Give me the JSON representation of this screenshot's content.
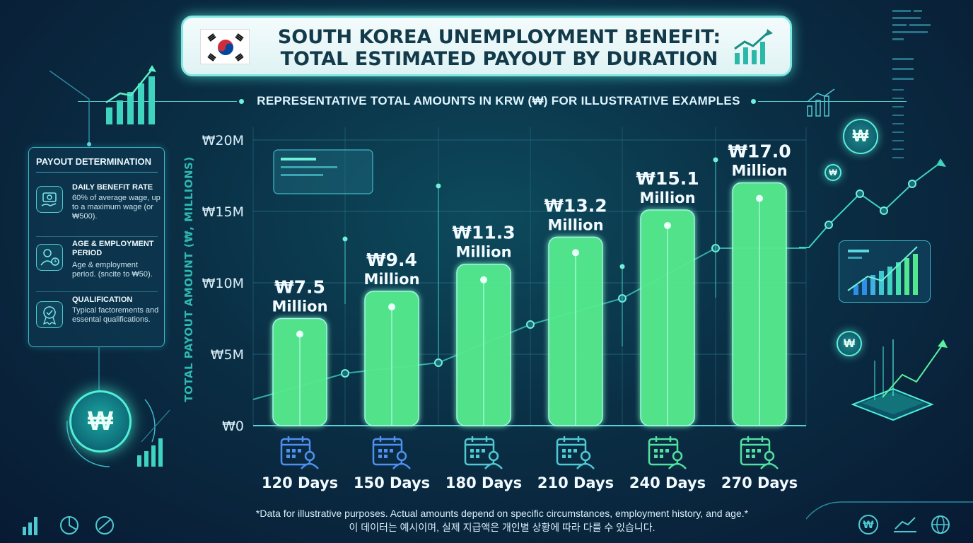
{
  "title_line1": "SOUTH KOREA UNEMPLOYMENT BENEFIT:",
  "title_line2": "TOTAL ESTIMATED PAYOUT BY DURATION",
  "subtitle": "REPRESENTATIVE TOTAL AMOUNTS IN KRW (₩) FOR ILLUSTRATIVE EXAMPLES",
  "panel": {
    "title": "PAYOUT DETERMINATION",
    "items": [
      {
        "title": "DAILY BENEFIT RATE",
        "desc": "60% of average wage, up to a maximum wage (or ₩500).",
        "icon": "money-hand-icon"
      },
      {
        "title": "AGE & EMPLOYMENT PERIOD",
        "desc": "Age & employment period. (sncite to ₩50).",
        "icon": "person-clock-icon"
      },
      {
        "title": "QUALIFICATION",
        "desc": "Typical factorements and essental qualifications.",
        "icon": "badge-icon"
      }
    ]
  },
  "coin_symbol": "₩",
  "footnote_en": "*Data for illustrative purposes. Actual amounts depend on specific circumstances, employment history, and age.*",
  "footnote_ko": "이 데이터는 예시이며, 실제 지급액은 개인별 상황에 따라 다를 수 있습니다.",
  "colors": {
    "accent": "#5af0d8",
    "bar_start": "#2f7fe8",
    "bar_end": "#52e890",
    "title_text": "#123a4a"
  },
  "chart_data": {
    "type": "bar",
    "categories": [
      "120 Days",
      "150 Days",
      "180 Days",
      "210 Days",
      "240 Days",
      "270 Days"
    ],
    "values": [
      7.5,
      9.4,
      11.3,
      13.2,
      15.1,
      17.0
    ],
    "value_labels": [
      [
        "₩7.5",
        "Million"
      ],
      [
        "₩9.4",
        "Million"
      ],
      [
        "₩11.3",
        "Million"
      ],
      [
        "₩13.2",
        "Million"
      ],
      [
        "₩15.1",
        "Million"
      ],
      [
        "₩17.0",
        "Million"
      ]
    ],
    "ylabel": "TOTAL PAYOUT AMOUNT (₩, MILLIONS)",
    "ylim": [
      0,
      20
    ],
    "yticks": [
      0,
      5,
      10,
      15,
      20
    ],
    "ytick_labels": [
      "₩0",
      "₩5M",
      "₩10M",
      "₩15M",
      "₩20M"
    ],
    "grid": true,
    "category_icon": "calendar-person-icon"
  }
}
